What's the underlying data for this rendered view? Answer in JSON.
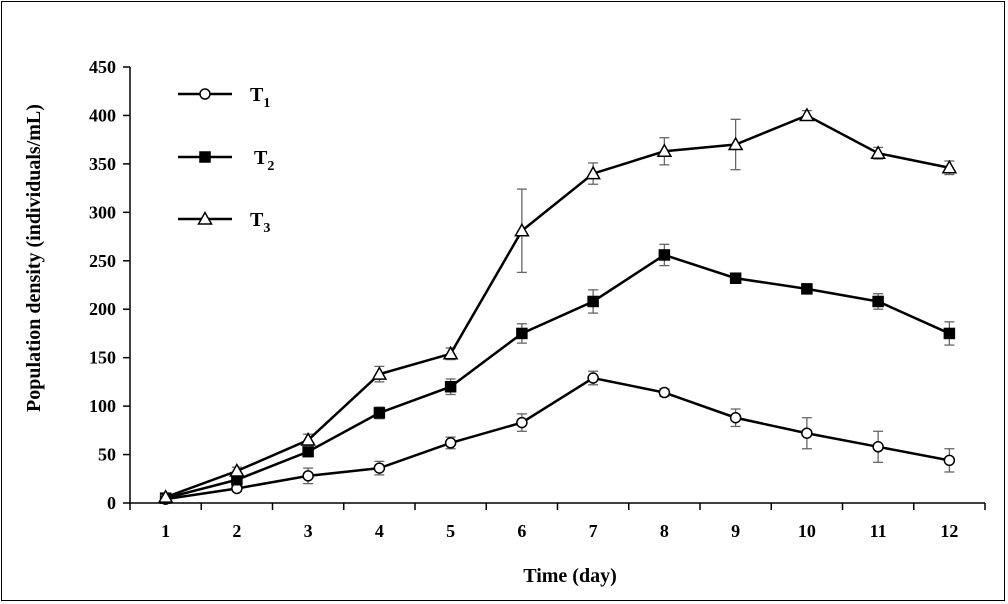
{
  "chart_data": {
    "type": "line",
    "xlabel": "Time (day)",
    "ylabel": "Population density (individuals/mL)",
    "x": [
      1,
      2,
      3,
      4,
      5,
      6,
      7,
      8,
      9,
      10,
      11,
      12
    ],
    "xlim": [
      0.5,
      12.5
    ],
    "ylim": [
      0,
      450
    ],
    "yticks": [
      0,
      50,
      100,
      150,
      200,
      250,
      300,
      350,
      400,
      450
    ],
    "legend_position": "top-left",
    "series": [
      {
        "name": "T",
        "subscript": "1",
        "marker": "open-circle",
        "values": [
          4,
          15,
          28,
          36,
          62,
          83,
          129,
          114,
          88,
          72,
          58,
          44
        ],
        "errors": [
          2,
          3,
          8,
          7,
          6,
          9,
          7,
          4,
          9,
          16,
          16,
          12
        ]
      },
      {
        "name": "T",
        "subscript": "2",
        "marker": "filled-square",
        "values": [
          5,
          24,
          53,
          93,
          120,
          175,
          208,
          256,
          232,
          221,
          208,
          175
        ],
        "errors": [
          2,
          3,
          5,
          6,
          8,
          10,
          12,
          11,
          5,
          4,
          8,
          12
        ]
      },
      {
        "name": "T",
        "subscript": "3",
        "marker": "open-triangle",
        "values": [
          6,
          33,
          65,
          133,
          154,
          281,
          340,
          363,
          370,
          400,
          361,
          346
        ],
        "errors": [
          2,
          4,
          6,
          8,
          6,
          43,
          11,
          14,
          26,
          5,
          6,
          7
        ]
      }
    ]
  }
}
